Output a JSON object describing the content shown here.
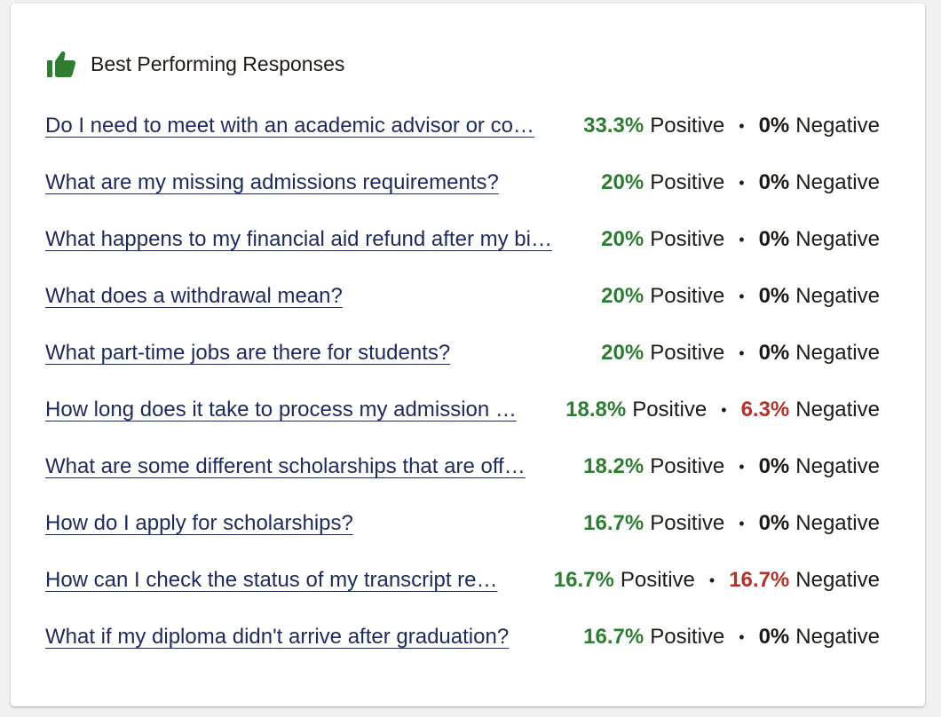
{
  "header": {
    "title": "Best Performing Responses",
    "icon": "thumb-up-icon",
    "icon_color": "#2e7d32"
  },
  "labels": {
    "positive": "Positive",
    "negative": "Negative",
    "separator": "•"
  },
  "colors": {
    "link": "#1d2a5c",
    "positive": "#2e7d32",
    "negative_nonzero": "#b3322a",
    "negative_zero": "#1f1a14"
  },
  "responses": [
    {
      "question": "Do I need to meet with an academic advisor or co…",
      "positive": "33.3%",
      "negative": "0%"
    },
    {
      "question": "What are my missing admissions requirements?",
      "positive": "20%",
      "negative": "0%"
    },
    {
      "question": "What happens to my financial aid refund after my bi…",
      "positive": "20%",
      "negative": "0%"
    },
    {
      "question": "What does a withdrawal mean?",
      "positive": "20%",
      "negative": "0%"
    },
    {
      "question": "What part-time jobs are there for students?",
      "positive": "20%",
      "negative": "0%"
    },
    {
      "question": "How long does it take to process my admission …",
      "positive": "18.8%",
      "negative": "6.3%"
    },
    {
      "question": "What are some different scholarships that are off…",
      "positive": "18.2%",
      "negative": "0%"
    },
    {
      "question": "How do I apply for scholarships?",
      "positive": "16.7%",
      "negative": "0%"
    },
    {
      "question": "How can I check the status of my transcript re…",
      "positive": "16.7%",
      "negative": "16.7%"
    },
    {
      "question": "What if my diploma didn't arrive after graduation?",
      "positive": "16.7%",
      "negative": "0%"
    }
  ]
}
